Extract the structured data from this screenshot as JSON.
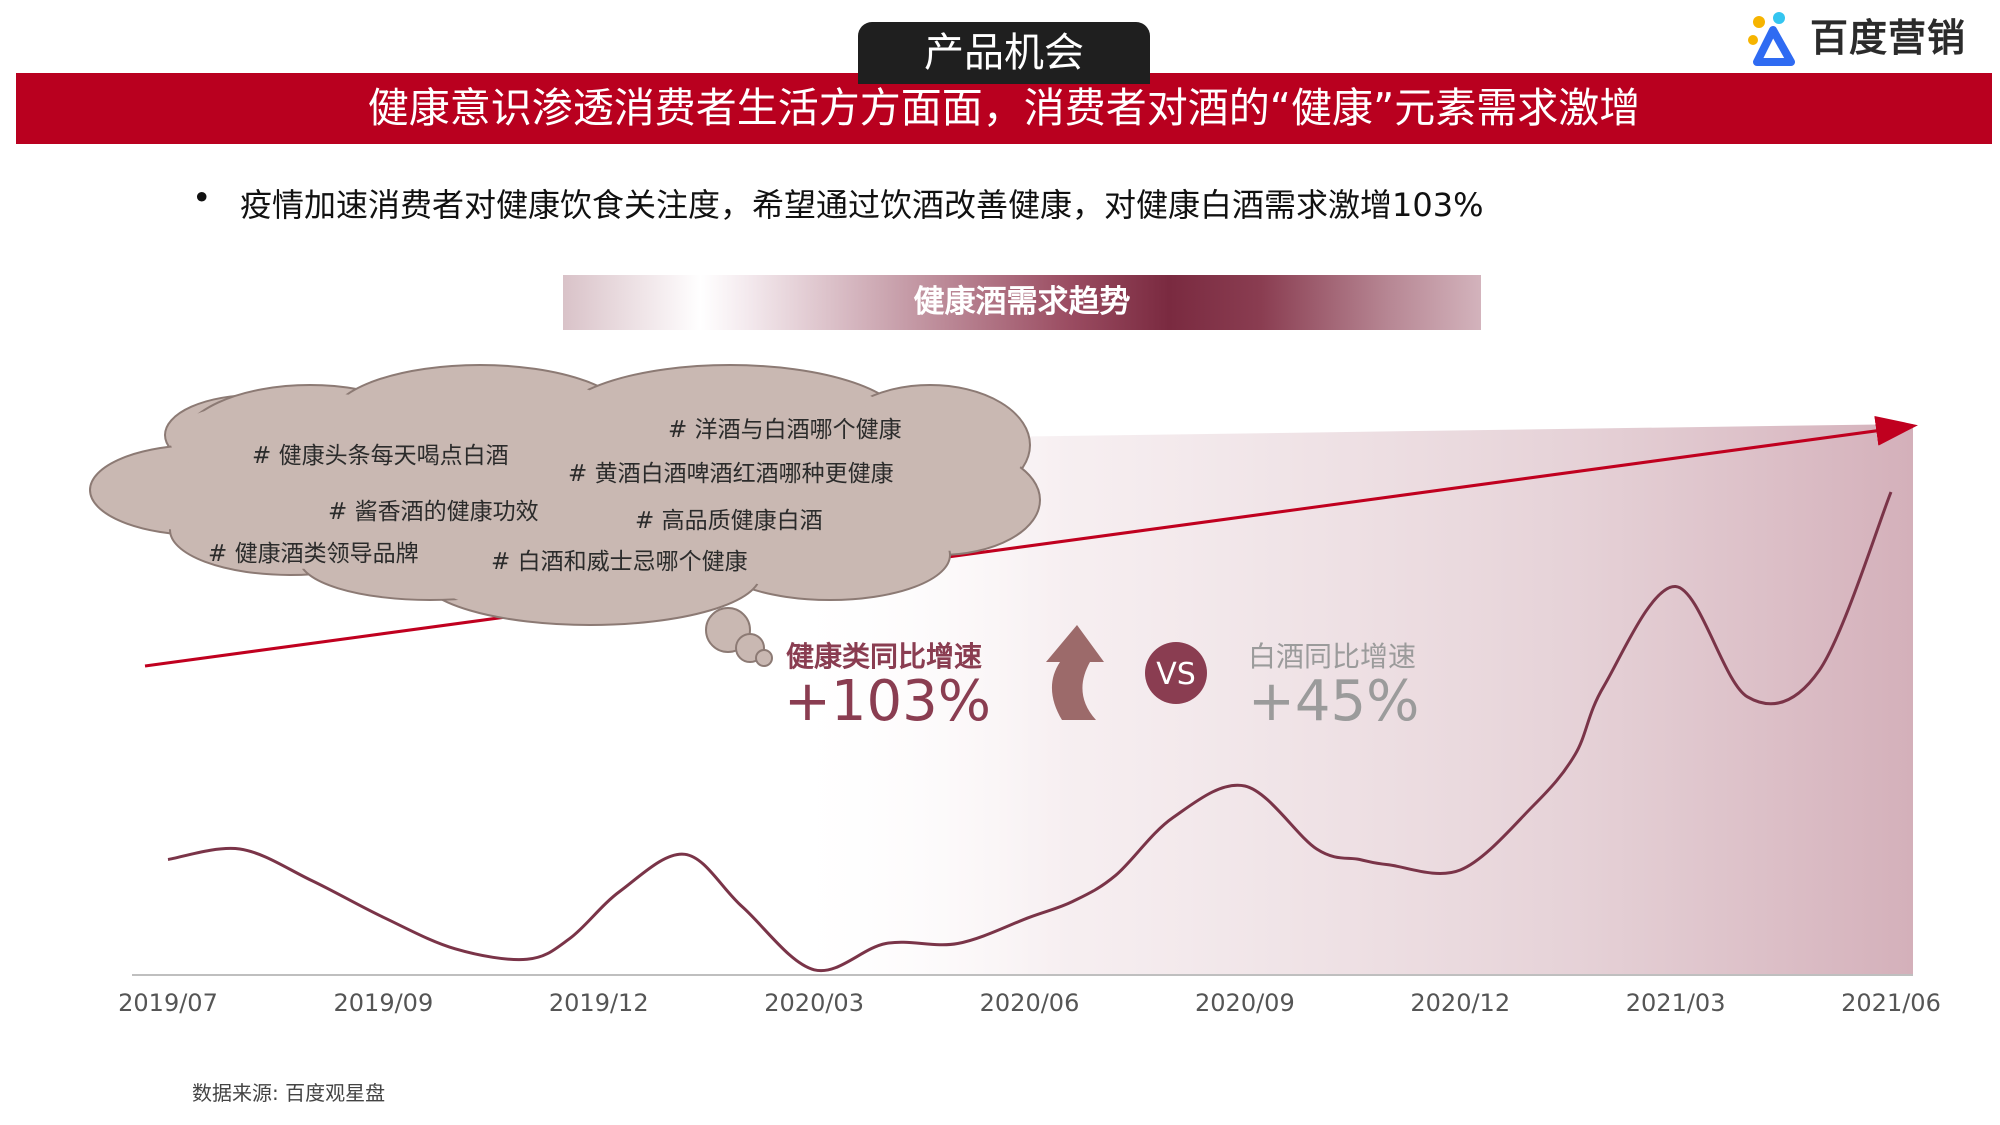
{
  "header": {
    "tag": "产品机会",
    "banner": "健康意识渗透消费者生活方方面面，消费者对酒的“健康”元素需求激增",
    "logo_text": "百度营销"
  },
  "bullet": {
    "marker": "•",
    "text": "疫情加速消费者对健康饮食关注度，希望通过饮酒改善健康，对健康白酒需求激增103%"
  },
  "section_title": "健康酒需求趋势",
  "cloud_tags": [
    "# 健康头条每天喝点白酒",
    "# 洋酒与白酒哪个健康",
    "# 黄酒白酒啤酒红酒哪种更健康",
    "# 酱香酒的健康功效",
    "# 高品质健康白酒",
    "# 健康酒类领导品牌",
    "# 白酒和威士忌哪个健康"
  ],
  "comparison": {
    "healthy_label": "健康类同比增速",
    "healthy_value": "+103%",
    "vs_label": "VS",
    "baijiu_label": "白酒同比增速",
    "baijiu_value": "+45%"
  },
  "colors": {
    "brand_red": "#b9001f",
    "line": "#7a3448",
    "highlight": "#8a3d51",
    "muted": "#9b9b9b",
    "logo_blue": "#2f6bf2",
    "logo_yellow": "#f6b400",
    "logo_lightblue": "#34c5f0"
  },
  "chart_data": {
    "type": "line",
    "title": "健康酒需求趋势",
    "x_tick_labels": [
      "2019/07",
      "2019/09",
      "2019/12",
      "2020/03",
      "2020/06",
      "2020/09",
      "2020/12",
      "2021/03",
      "2021/06"
    ],
    "x": [
      0,
      1,
      2,
      3,
      4,
      5,
      5.6,
      6.3,
      7.2,
      8.0,
      9.0,
      10.0,
      11.0,
      12.0,
      12.6,
      13.2,
      14.0,
      15.0,
      16.0,
      16.6,
      17.0,
      18.0,
      19.0,
      19.6,
      20.0,
      21.0,
      22.0,
      23.0,
      24.0
    ],
    "series": [
      {
        "values": [
          22,
          24,
          18,
          11,
          5,
          3,
          7,
          16,
          23,
          13,
          1,
          6,
          6,
          11,
          14,
          19,
          30,
          36,
          24,
          22,
          21,
          20,
          32,
          42,
          55,
          74,
          53,
          58,
          92
        ]
      }
    ],
    "ylim": [
      0,
      100
    ],
    "y_axis_visible": false,
    "grid": false,
    "trend_arrow": true,
    "shaded_region": "2020/03 to 2021/07 gradient"
  },
  "footer": {
    "source": "数据来源: 百度观星盘"
  }
}
